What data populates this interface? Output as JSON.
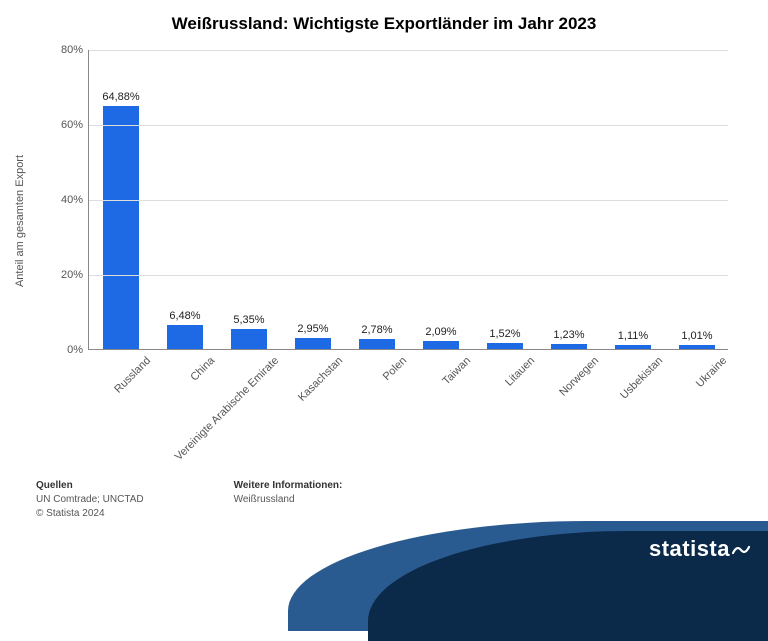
{
  "title": "Weißrussland: Wichtigste Exportländer im Jahr 2023",
  "title_fontsize": 17,
  "chart": {
    "type": "bar",
    "ylabel": "Anteil am gesamten Export",
    "ylim": [
      0,
      80
    ],
    "ytick_step": 20,
    "ytick_suffix": "%",
    "bar_color": "#1e6ae5",
    "grid_color": "#dddddd",
    "axis_color": "#888888",
    "background_color": "#ffffff",
    "label_fontsize": 11,
    "bar_width": 0.55,
    "categories": [
      "Russland",
      "China",
      "Vereinigte Arabische Emirate",
      "Kasachstan",
      "Polen",
      "Taiwan",
      "Litauen",
      "Norwegen",
      "Usbekistan",
      "Ukraine"
    ],
    "values": [
      64.88,
      6.48,
      5.35,
      2.95,
      2.78,
      2.09,
      1.52,
      1.23,
      1.11,
      1.01
    ],
    "value_labels": [
      "64,88%",
      "6,48%",
      "5,35%",
      "2,95%",
      "2,78%",
      "2,09%",
      "1,52%",
      "1,23%",
      "1,11%",
      "1,01%"
    ]
  },
  "footer": {
    "sources_head": "Quellen",
    "sources_line": "UN Comtrade; UNCTAD",
    "copyright": "© Statista 2024",
    "moreinfo_head": "Weitere Informationen:",
    "moreinfo_line": "Weißrussland"
  },
  "logo": {
    "text": "statista",
    "band_color1": "#2a5b90",
    "band_color2": "#0b2a4a",
    "text_color": "#ffffff"
  }
}
